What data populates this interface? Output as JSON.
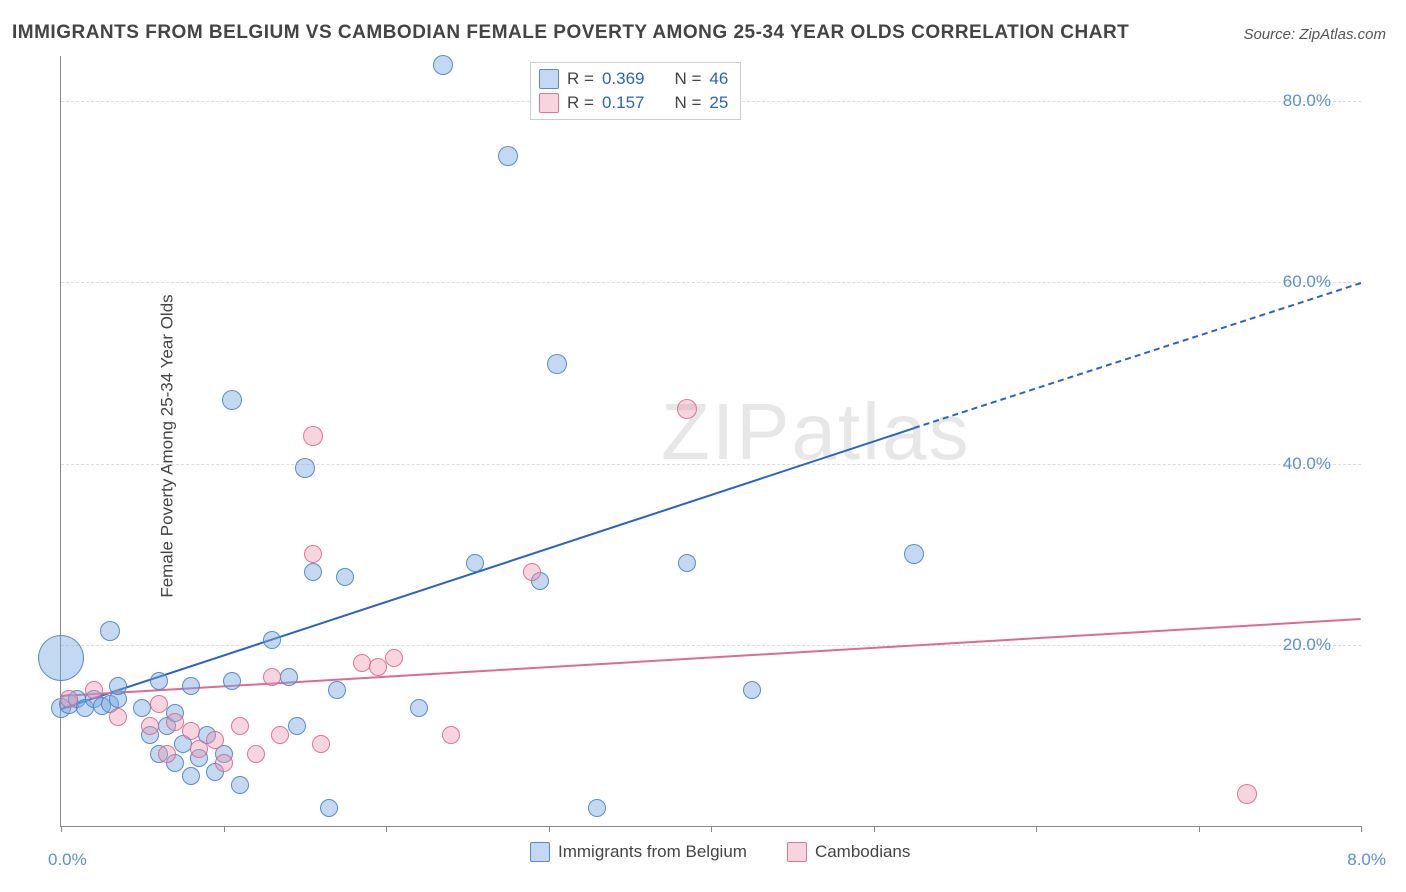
{
  "title": "IMMIGRANTS FROM BELGIUM VS CAMBODIAN FEMALE POVERTY AMONG 25-34 YEAR OLDS CORRELATION CHART",
  "source_label": "Source: ZipAtlas.com",
  "y_axis_label": "Female Poverty Among 25-34 Year Olds",
  "watermark": "ZIPatlas",
  "chart": {
    "type": "scatter",
    "xlim": [
      0,
      8
    ],
    "ylim": [
      0,
      85
    ],
    "x_ticks": [
      0,
      1,
      2,
      3,
      4,
      5,
      6,
      7,
      8
    ],
    "x_tick_labels": {
      "0": "0.0%",
      "8": "8.0%"
    },
    "y_ticks": [
      20,
      40,
      60,
      80
    ],
    "y_tick_labels": [
      "20.0%",
      "40.0%",
      "60.0%",
      "80.0%"
    ],
    "background_color": "#ffffff",
    "grid_color": "#dddddd",
    "axis_color": "#888888",
    "series": [
      {
        "name": "Immigrants from Belgium",
        "key": "belgium",
        "color_fill": "rgba(120,170,225,0.45)",
        "color_stroke": "rgba(80,130,200,0.9)",
        "trend_color": "#2b63c0",
        "trend_solid": {
          "x1": 0.0,
          "y1": 13.0,
          "x2": 5.25,
          "y2": 44.0
        },
        "trend_dash": {
          "x1": 5.25,
          "y1": 44.0,
          "x2": 8.0,
          "y2": 60.0
        },
        "R": "0.369",
        "N": "46",
        "points": [
          {
            "x": 0.0,
            "y": 13.0,
            "r": 9
          },
          {
            "x": 0.0,
            "y": 18.5,
            "r": 22
          },
          {
            "x": 0.05,
            "y": 13.5,
            "r": 9
          },
          {
            "x": 0.1,
            "y": 14.0,
            "r": 8
          },
          {
            "x": 0.15,
            "y": 13.0,
            "r": 8
          },
          {
            "x": 0.2,
            "y": 14.0,
            "r": 8
          },
          {
            "x": 0.25,
            "y": 13.2,
            "r": 8
          },
          {
            "x": 0.3,
            "y": 13.5,
            "r": 8
          },
          {
            "x": 0.35,
            "y": 14.0,
            "r": 8
          },
          {
            "x": 0.3,
            "y": 21.5,
            "r": 9
          },
          {
            "x": 0.35,
            "y": 15.5,
            "r": 8
          },
          {
            "x": 0.5,
            "y": 13.0,
            "r": 8
          },
          {
            "x": 0.55,
            "y": 10.0,
            "r": 8
          },
          {
            "x": 0.6,
            "y": 8.0,
            "r": 8
          },
          {
            "x": 0.6,
            "y": 16.0,
            "r": 8
          },
          {
            "x": 0.65,
            "y": 11.0,
            "r": 8
          },
          {
            "x": 0.7,
            "y": 7.0,
            "r": 8
          },
          {
            "x": 0.7,
            "y": 12.5,
            "r": 8
          },
          {
            "x": 0.75,
            "y": 9.0,
            "r": 8
          },
          {
            "x": 0.8,
            "y": 5.5,
            "r": 8
          },
          {
            "x": 0.8,
            "y": 15.5,
            "r": 8
          },
          {
            "x": 0.85,
            "y": 7.5,
            "r": 8
          },
          {
            "x": 0.9,
            "y": 10.0,
            "r": 8
          },
          {
            "x": 0.95,
            "y": 6.0,
            "r": 8
          },
          {
            "x": 1.0,
            "y": 8.0,
            "r": 8
          },
          {
            "x": 1.05,
            "y": 16.0,
            "r": 8
          },
          {
            "x": 1.1,
            "y": 4.5,
            "r": 8
          },
          {
            "x": 1.05,
            "y": 47.0,
            "r": 9
          },
          {
            "x": 1.3,
            "y": 20.5,
            "r": 8
          },
          {
            "x": 1.4,
            "y": 16.5,
            "r": 8
          },
          {
            "x": 1.45,
            "y": 11.0,
            "r": 8
          },
          {
            "x": 1.5,
            "y": 39.5,
            "r": 9
          },
          {
            "x": 1.55,
            "y": 28.0,
            "r": 8
          },
          {
            "x": 1.65,
            "y": 2.0,
            "r": 8
          },
          {
            "x": 1.7,
            "y": 15.0,
            "r": 8
          },
          {
            "x": 1.75,
            "y": 27.5,
            "r": 8
          },
          {
            "x": 2.2,
            "y": 13.0,
            "r": 8
          },
          {
            "x": 2.35,
            "y": 84.0,
            "r": 9
          },
          {
            "x": 2.55,
            "y": 29.0,
            "r": 8
          },
          {
            "x": 2.75,
            "y": 74.0,
            "r": 9
          },
          {
            "x": 2.95,
            "y": 27.0,
            "r": 8
          },
          {
            "x": 3.05,
            "y": 51.0,
            "r": 9
          },
          {
            "x": 3.3,
            "y": 2.0,
            "r": 8
          },
          {
            "x": 3.85,
            "y": 29.0,
            "r": 8
          },
          {
            "x": 4.25,
            "y": 15.0,
            "r": 8
          },
          {
            "x": 5.25,
            "y": 30.0,
            "r": 9
          }
        ]
      },
      {
        "name": "Cambodians",
        "key": "cambodians",
        "color_fill": "rgba(235,150,175,0.40)",
        "color_stroke": "rgba(215,100,140,0.85)",
        "trend_color": "#e06a92",
        "trend_solid": {
          "x1": 0.0,
          "y1": 14.5,
          "x2": 8.0,
          "y2": 23.0
        },
        "trend_dash": null,
        "R": "0.157",
        "N": "25",
        "points": [
          {
            "x": 0.05,
            "y": 14.0,
            "r": 8
          },
          {
            "x": 0.2,
            "y": 15.0,
            "r": 8
          },
          {
            "x": 0.35,
            "y": 12.0,
            "r": 8
          },
          {
            "x": 0.55,
            "y": 11.0,
            "r": 8
          },
          {
            "x": 0.6,
            "y": 13.5,
            "r": 8
          },
          {
            "x": 0.65,
            "y": 8.0,
            "r": 8
          },
          {
            "x": 0.7,
            "y": 11.5,
            "r": 8
          },
          {
            "x": 0.8,
            "y": 10.5,
            "r": 8
          },
          {
            "x": 0.85,
            "y": 8.5,
            "r": 8
          },
          {
            "x": 0.95,
            "y": 9.5,
            "r": 8
          },
          {
            "x": 1.0,
            "y": 7.0,
            "r": 8
          },
          {
            "x": 1.1,
            "y": 11.0,
            "r": 8
          },
          {
            "x": 1.2,
            "y": 8.0,
            "r": 8
          },
          {
            "x": 1.3,
            "y": 16.5,
            "r": 8
          },
          {
            "x": 1.35,
            "y": 10.0,
            "r": 8
          },
          {
            "x": 1.55,
            "y": 30.0,
            "r": 8
          },
          {
            "x": 1.6,
            "y": 9.0,
            "r": 8
          },
          {
            "x": 1.55,
            "y": 43.0,
            "r": 9
          },
          {
            "x": 1.85,
            "y": 18.0,
            "r": 8
          },
          {
            "x": 1.95,
            "y": 17.5,
            "r": 8
          },
          {
            "x": 2.05,
            "y": 18.5,
            "r": 8
          },
          {
            "x": 2.4,
            "y": 10.0,
            "r": 8
          },
          {
            "x": 2.9,
            "y": 28.0,
            "r": 8
          },
          {
            "x": 3.85,
            "y": 46.0,
            "r": 9
          },
          {
            "x": 7.3,
            "y": 3.5,
            "r": 9
          }
        ]
      }
    ],
    "legend_top": {
      "rows": [
        {
          "color": "blue",
          "r_label": "R =",
          "r_value": "0.369",
          "n_label": "N =",
          "n_value": "46"
        },
        {
          "color": "pink",
          "r_label": "R =",
          "r_value": "0.157",
          "n_label": "N =",
          "n_value": "25"
        }
      ]
    },
    "legend_bottom": [
      {
        "color": "blue",
        "label": "Immigrants from Belgium"
      },
      {
        "color": "pink",
        "label": "Cambodians"
      }
    ]
  }
}
